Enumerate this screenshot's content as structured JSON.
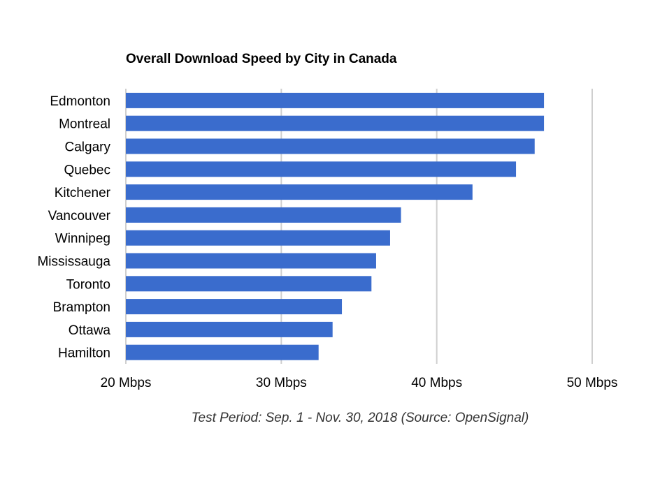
{
  "chart_data": {
    "type": "bar",
    "orientation": "horizontal",
    "title": "Overall Download Speed by City in Canada",
    "categories": [
      "Edmonton",
      "Montreal",
      "Calgary",
      "Quebec",
      "Kitchener",
      "Vancouver",
      "Winnipeg",
      "Mississauga",
      "Toronto",
      "Brampton",
      "Ottawa",
      "Hamilton"
    ],
    "values": [
      46.9,
      46.9,
      46.3,
      45.1,
      42.3,
      37.7,
      37.0,
      36.1,
      35.8,
      33.9,
      33.3,
      32.4
    ],
    "xlim": [
      20,
      50
    ],
    "xticks": [
      20,
      30,
      40,
      50
    ],
    "xtick_labels": [
      "20 Mbps",
      "30 Mbps",
      "40 Mbps",
      "50 Mbps"
    ],
    "xlabel": "",
    "ylabel": "",
    "grid": true,
    "bar_color": "#3a6ccd"
  },
  "caption": "Test Period: Sep. 1 - Nov. 30, 2018 (Source: OpenSignal)"
}
